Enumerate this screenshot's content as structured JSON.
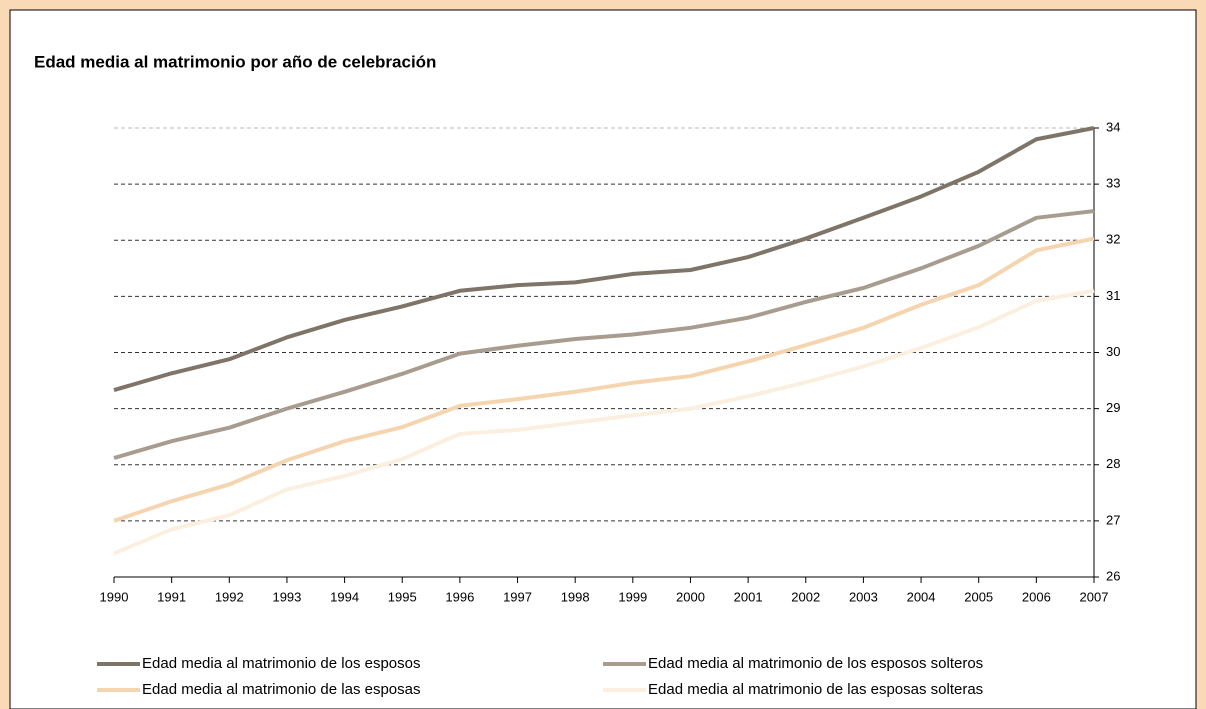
{
  "chart_data": {
    "type": "line",
    "title": "Edad media al matrimonio por año de celebración",
    "x": [
      1990,
      1991,
      1992,
      1993,
      1994,
      1995,
      1996,
      1997,
      1998,
      1999,
      2000,
      2001,
      2002,
      2003,
      2004,
      2005,
      2006,
      2007
    ],
    "xlim": [
      1990,
      2007
    ],
    "xticks": [
      1990,
      1991,
      1992,
      1993,
      1994,
      1995,
      1996,
      1997,
      1998,
      1999,
      2000,
      2001,
      2002,
      2003,
      2004,
      2005,
      2006,
      2007
    ],
    "ylim": [
      26,
      34
    ],
    "yticks": [
      26,
      27,
      28,
      29,
      30,
      31,
      32,
      33,
      34
    ],
    "grid": true,
    "y_axis_side": "right",
    "legend": "bottom",
    "series": [
      {
        "name": "Edad media al matrimonio de los esposos",
        "color": "#7f7468",
        "values": [
          29.33,
          29.63,
          29.88,
          30.27,
          30.58,
          30.82,
          31.1,
          31.2,
          31.25,
          31.4,
          31.47,
          31.7,
          32.03,
          32.4,
          32.78,
          33.22,
          33.8,
          34.0
        ]
      },
      {
        "name": "Edad media al matrimonio de los esposos solteros",
        "color": "#a89c8f",
        "values": [
          28.12,
          28.42,
          28.66,
          29.0,
          29.3,
          29.62,
          29.98,
          30.12,
          30.24,
          30.32,
          30.44,
          30.62,
          30.9,
          31.15,
          31.5,
          31.9,
          32.4,
          32.52
        ]
      },
      {
        "name": "Edad media al matrimonio de las esposas",
        "color": "#f5d5b0",
        "values": [
          27.0,
          27.35,
          27.65,
          28.08,
          28.42,
          28.67,
          29.05,
          29.17,
          29.3,
          29.46,
          29.58,
          29.84,
          30.13,
          30.44,
          30.85,
          31.2,
          31.82,
          32.03
        ]
      },
      {
        "name": "Edad media al matrimonio de las esposas solteras",
        "color": "#fbefe0",
        "values": [
          26.42,
          26.85,
          27.1,
          27.56,
          27.8,
          28.1,
          28.55,
          28.62,
          28.75,
          28.88,
          29.0,
          29.22,
          29.47,
          29.75,
          30.08,
          30.45,
          30.92,
          31.1
        ]
      }
    ]
  }
}
